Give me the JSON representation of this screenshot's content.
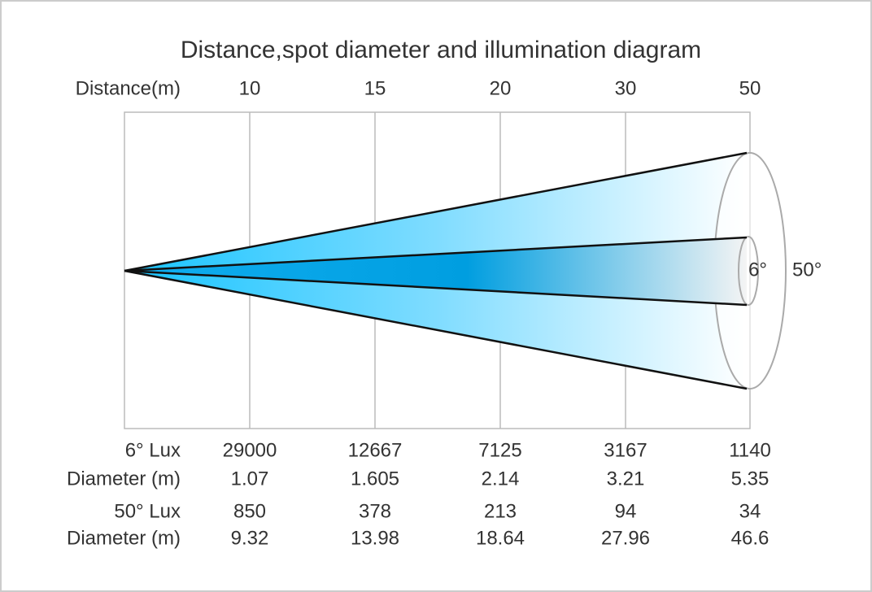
{
  "title": "Distance,spot diameter and illumination diagram",
  "distance_label": "Distance(m)",
  "distances": [
    "10",
    "15",
    "20",
    "30",
    "50"
  ],
  "beam_labels": [
    "6°",
    "50°"
  ],
  "rows": [
    {
      "label": "6°  Lux",
      "values": [
        "29000",
        "12667",
        "7125",
        "3167",
        "1140"
      ]
    },
    {
      "label": "Diameter (m)",
      "values": [
        "1.07",
        "1.605",
        "2.14",
        "3.21",
        "5.35"
      ]
    },
    {
      "label": "50°  Lux",
      "values": [
        "850",
        "378",
        "213",
        "94",
        "34"
      ]
    },
    {
      "label": "Diameter (m)",
      "values": [
        "9.32",
        "13.98",
        "18.64",
        "27.96",
        "46.6"
      ]
    }
  ]
}
